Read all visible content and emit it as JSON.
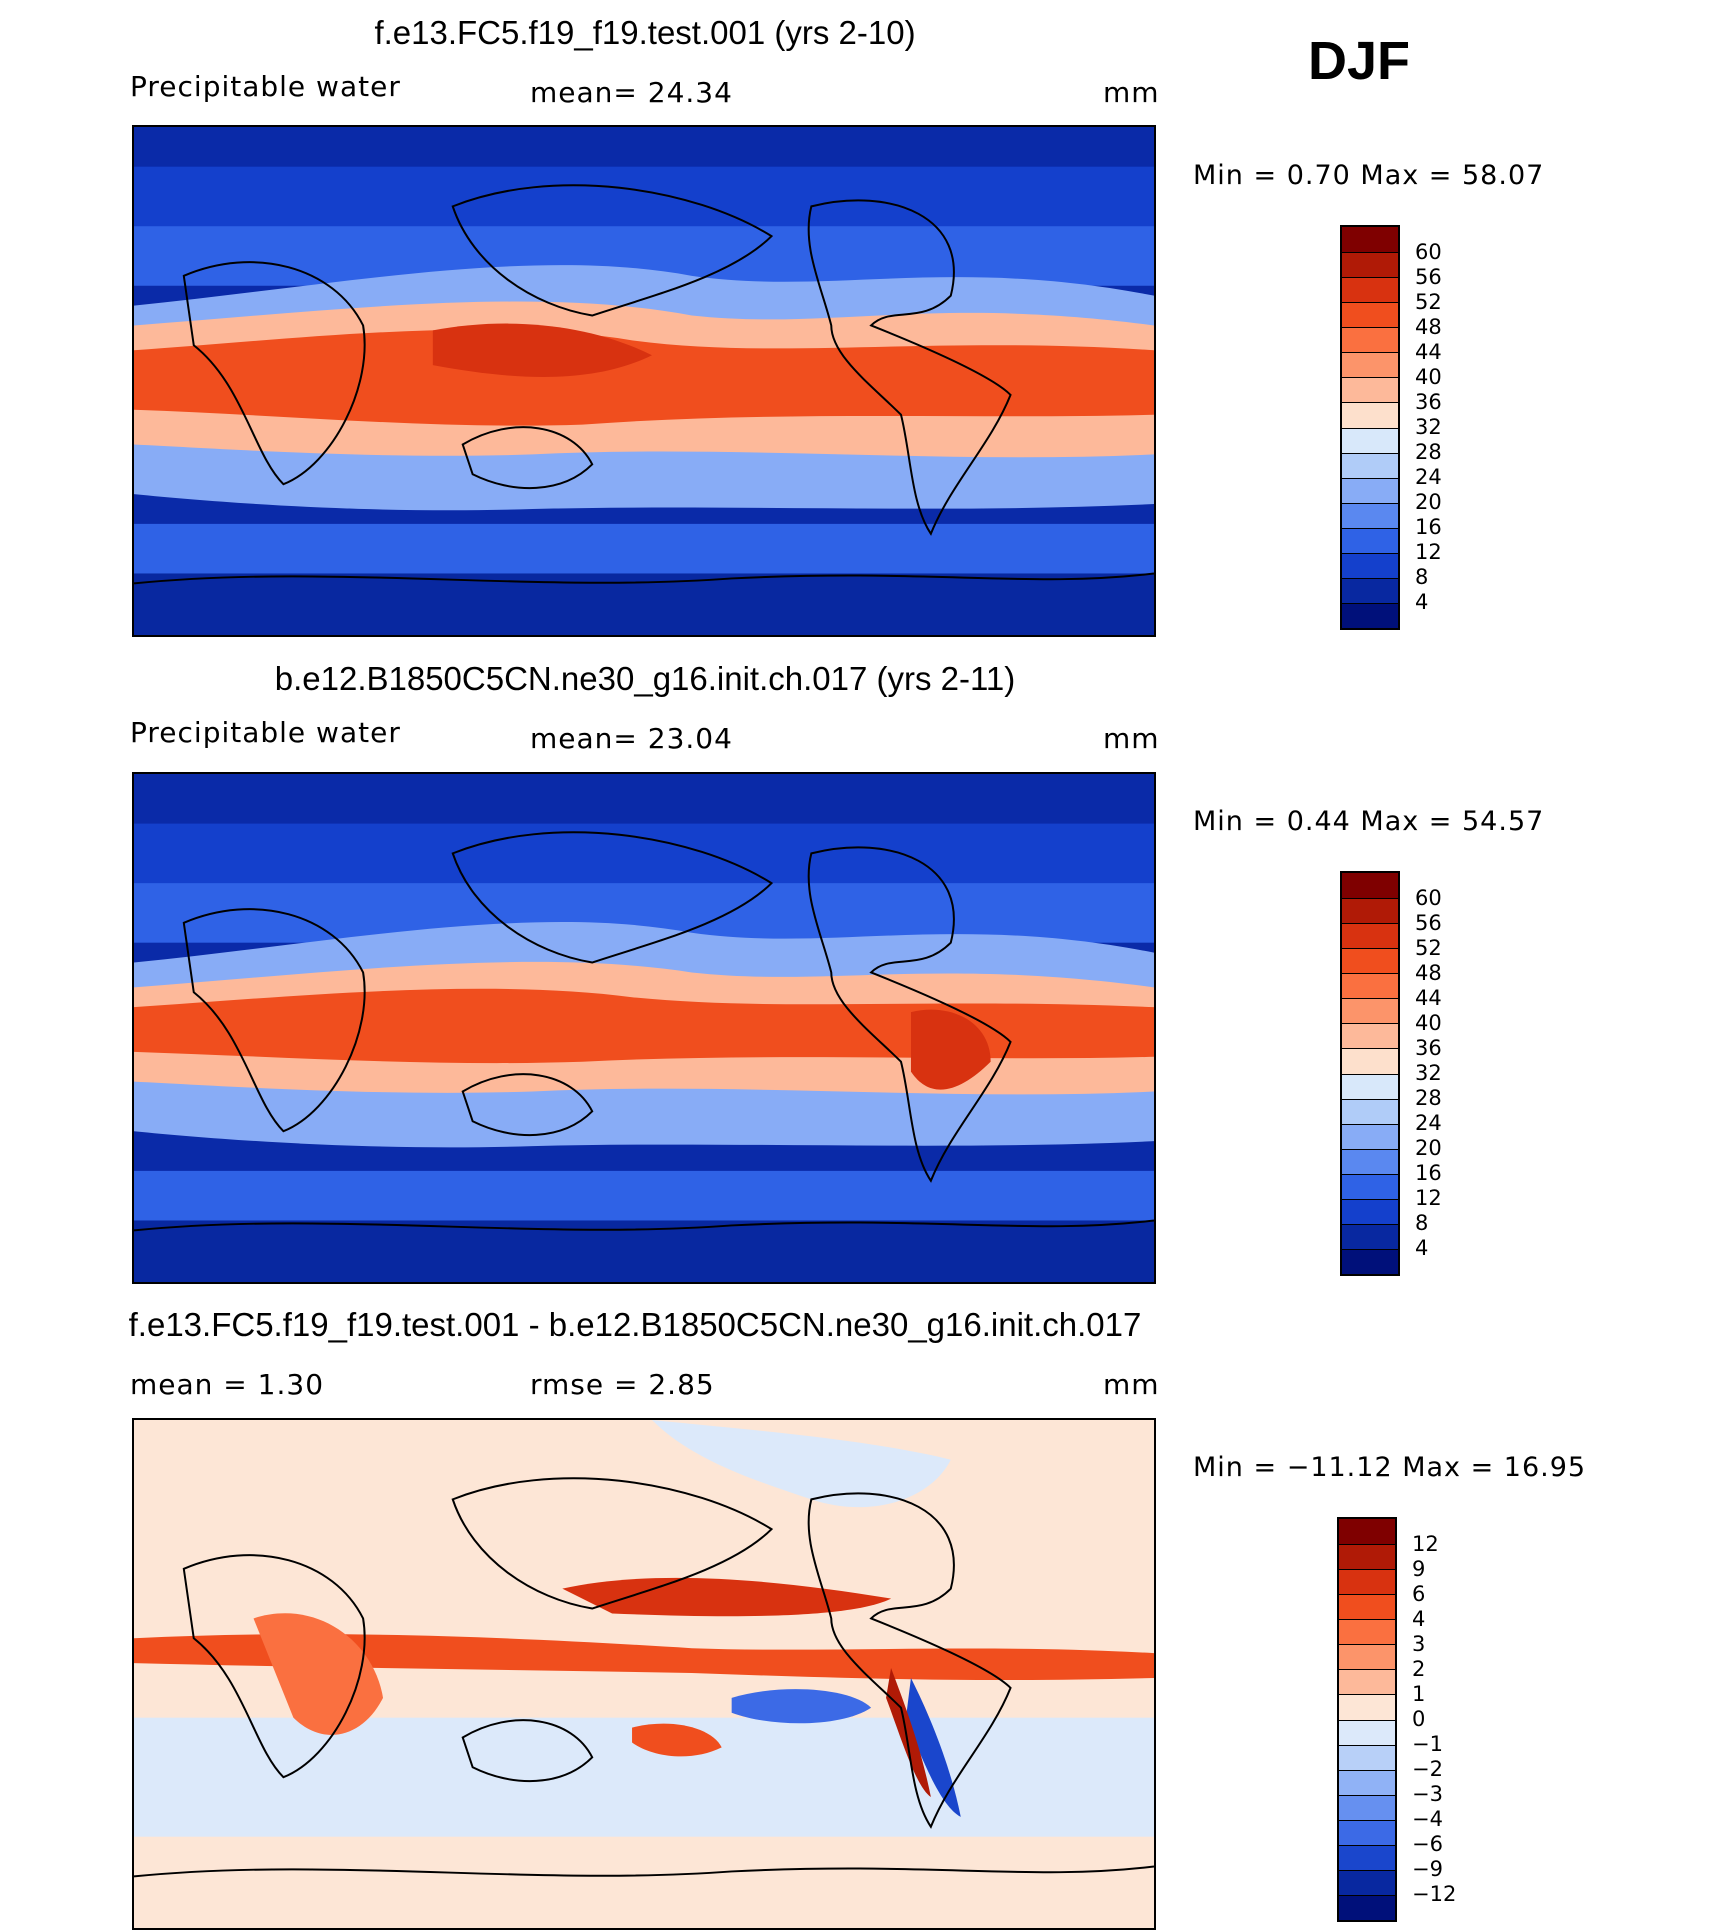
{
  "season": "DJF",
  "panels": [
    {
      "title": "f.e13.FC5.f19_f19.test.001 (yrs 2-10)",
      "left_label": "Precipitable  water",
      "center_label": "mean=   24.34",
      "units": "mm",
      "minmax": "Min  =     0.70  Max  =    58.07",
      "colorbar": {
        "levels": [
          "60",
          "56",
          "52",
          "48",
          "44",
          "40",
          "36",
          "32",
          "28",
          "24",
          "20",
          "16",
          "12",
          "8",
          "4"
        ],
        "colors": [
          "#7f0000",
          "#b01a06",
          "#d83210",
          "#f04e1e",
          "#fa7040",
          "#fc946a",
          "#fdb99a",
          "#fde0cc",
          "#d8e8fa",
          "#b0ccf8",
          "#88acf6",
          "#5a88f0",
          "#2f62e6",
          "#1440cc",
          "#0828a0",
          "#00107a"
        ]
      }
    },
    {
      "title": "b.e12.B1850C5CN.ne30_g16.init.ch.017 (yrs 2-11)",
      "left_label": "Precipitable  water",
      "center_label": "mean=   23.04",
      "units": "mm",
      "minmax": "Min  =     0.44  Max  =    54.57",
      "colorbar": {
        "levels": [
          "60",
          "56",
          "52",
          "48",
          "44",
          "40",
          "36",
          "32",
          "28",
          "24",
          "20",
          "16",
          "12",
          "8",
          "4"
        ],
        "colors": [
          "#7f0000",
          "#b01a06",
          "#d83210",
          "#f04e1e",
          "#fa7040",
          "#fc946a",
          "#fdb99a",
          "#fde0cc",
          "#d8e8fa",
          "#b0ccf8",
          "#88acf6",
          "#5a88f0",
          "#2f62e6",
          "#1440cc",
          "#0828a0",
          "#00107a"
        ]
      }
    },
    {
      "title": "f.e13.FC5.f19_f19.test.001 - b.e12.B1850C5CN.ne30_g16.init.ch.017",
      "left_label": "mean  =      1.30",
      "center_label": "rmse  =      2.85",
      "units": "mm",
      "minmax": "Min  = −11.12  Max  =    16.95",
      "colorbar": {
        "levels": [
          "12",
          "9",
          "6",
          "4",
          "3",
          "2",
          "1",
          "0",
          "−1",
          "−2",
          "−3",
          "−4",
          "−6",
          "−9",
          "−12"
        ],
        "colors": [
          "#7f0000",
          "#b01a06",
          "#d83210",
          "#f04e1e",
          "#fa7040",
          "#fc946a",
          "#fdb99a",
          "#fde6d6",
          "#dce9fa",
          "#b8d0f8",
          "#90b2f6",
          "#6690f0",
          "#3c6ae6",
          "#1a46cc",
          "#0828a0",
          "#00107a"
        ]
      }
    }
  ]
}
